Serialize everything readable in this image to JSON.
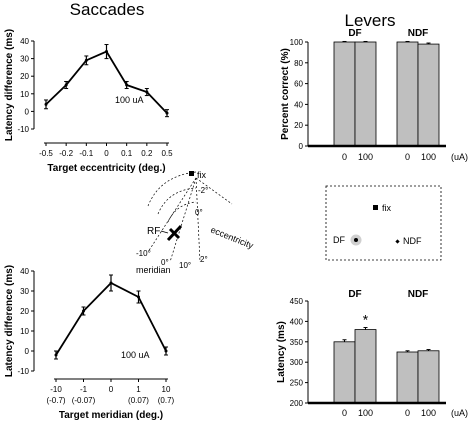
{
  "headings": {
    "left": "Saccades",
    "right": "Levers"
  },
  "chart_data": [
    {
      "type": "line",
      "name": "saccade-eccentricity",
      "x": [
        "-0.5",
        "-0.2",
        "-0.1",
        "0",
        "0.1",
        "0.2",
        "0.5"
      ],
      "values": [
        4,
        15,
        29,
        34,
        15,
        11,
        -1
      ],
      "error": [
        2.5,
        2,
        2.5,
        4,
        2,
        2,
        2
      ],
      "ylim": [
        -10,
        40
      ],
      "yticks": [
        -10,
        0,
        10,
        20,
        30,
        40
      ],
      "xlabel": "Target eccentricity (deg.)",
      "ylabel": "Latency difference (ms)",
      "annotation": "100 uA"
    },
    {
      "type": "line",
      "name": "saccade-meridian",
      "x": [
        "-10",
        "-1",
        "0",
        "1",
        "10"
      ],
      "x_sub": [
        "(-0.7)",
        "(-0.07)",
        "",
        "(0.07)",
        "(0.7)"
      ],
      "values": [
        -2,
        20,
        34,
        27,
        0
      ],
      "error": [
        2,
        2,
        4,
        3,
        2
      ],
      "ylim": [
        -10,
        40
      ],
      "yticks": [
        -10,
        0,
        10,
        20,
        30,
        40
      ],
      "xlabel": "Target meridian (deg.)",
      "ylabel": "Latency difference (ms)",
      "annotation": "100 uA"
    },
    {
      "type": "bar",
      "name": "lever-percent-correct",
      "groups": [
        "DF",
        "NDF"
      ],
      "categories": [
        "0",
        "100"
      ],
      "unit_label": "(uA)",
      "values": [
        [
          100,
          100
        ],
        [
          100,
          98
        ]
      ],
      "error": [
        [
          0.5,
          0.5
        ],
        [
          0.5,
          1
        ]
      ],
      "ylim": [
        0,
        100
      ],
      "yticks": [
        0,
        20,
        40,
        60,
        80,
        100
      ],
      "ylabel": "Percent correct (%)"
    },
    {
      "type": "bar",
      "name": "lever-latency",
      "groups": [
        "DF",
        "NDF"
      ],
      "categories": [
        "0",
        "100"
      ],
      "unit_label": "(uA)",
      "values": [
        [
          350,
          380
        ],
        [
          325,
          328
        ]
      ],
      "error": [
        [
          5,
          5
        ],
        [
          3,
          3
        ]
      ],
      "ylim": [
        200,
        450
      ],
      "yticks": [
        200,
        250,
        300,
        350,
        400,
        450
      ],
      "ylabel": "Latency (ms)",
      "significance": "*"
    }
  ],
  "diagram": {
    "fix_label": "fix",
    "rf_label": "RF",
    "eccentricity_label": "eccentricity",
    "meridian_label": "meridian",
    "ecc_ticks": [
      "-2°",
      "0°",
      "2°"
    ],
    "mer_ticks": [
      "-10°",
      "0°",
      "10°"
    ]
  },
  "lever_display": {
    "fix": "fix",
    "df": "DF",
    "ndf": "NDF"
  },
  "colors": {
    "bar_fill": "#bfbfbf",
    "axis": "#000000"
  }
}
